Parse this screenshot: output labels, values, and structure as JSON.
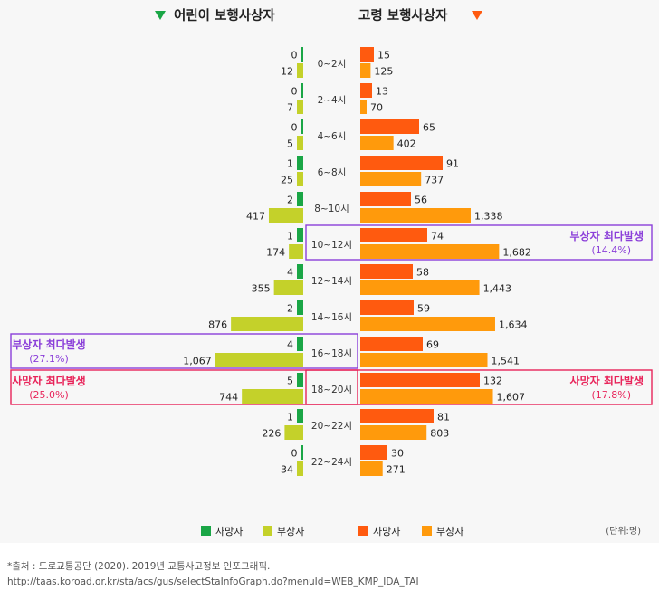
{
  "chart_data": {
    "type": "bar",
    "title_left": "어린이 보행사상자",
    "title_right": "고령 보행사상자",
    "categories": [
      "0~2시",
      "2~4시",
      "4~6시",
      "6~8시",
      "8~10시",
      "10~12시",
      "12~14시",
      "14~16시",
      "16~18시",
      "18~20시",
      "20~22시",
      "22~24시"
    ],
    "series": [
      {
        "name": "어린이 사망자",
        "color": "#1aa646",
        "values": [
          0,
          0,
          0,
          1,
          2,
          1,
          4,
          2,
          4,
          5,
          1,
          0
        ]
      },
      {
        "name": "어린이 부상자",
        "color": "#c4d12a",
        "values": [
          12,
          7,
          5,
          25,
          417,
          174,
          355,
          876,
          1067,
          744,
          226,
          34
        ]
      },
      {
        "name": "고령 사망자",
        "color": "#ff5a0f",
        "values": [
          15,
          13,
          65,
          91,
          56,
          74,
          58,
          59,
          69,
          132,
          81,
          30
        ]
      },
      {
        "name": "고령 부상자",
        "color": "#ff9a0c",
        "values": [
          125,
          70,
          402,
          737,
          1338,
          1682,
          1443,
          1634,
          1541,
          1607,
          803,
          271
        ]
      }
    ],
    "labels": {
      "child_deaths": [
        "0",
        "0",
        "0",
        "1",
        "2",
        "1",
        "4",
        "2",
        "4",
        "5",
        "1",
        "0"
      ],
      "child_injuries": [
        "12",
        "7",
        "5",
        "25",
        "417",
        "174",
        "355",
        "876",
        "1,067",
        "744",
        "226",
        "34"
      ],
      "elderly_deaths": [
        "15",
        "13",
        "65",
        "91",
        "56",
        "74",
        "58",
        "59",
        "69",
        "132",
        "81",
        "30"
      ],
      "elderly_injuries": [
        "125",
        "70",
        "402",
        "737",
        "1,338",
        "1,682",
        "1,443",
        "1,634",
        "1,541",
        "1,607",
        "803",
        "271"
      ]
    },
    "annotations": [
      {
        "side": "right",
        "category": "10~12시",
        "line1": "부상자 최다발생",
        "line2": "(14.4%)",
        "color": "#8b3fd9"
      },
      {
        "side": "left",
        "category": "16~18시",
        "line1": "부상자 최다발생",
        "line2": "(27.1%)",
        "color": "#8b3fd9"
      },
      {
        "side": "left",
        "category": "18~20시",
        "line1": "사망자 최다발생",
        "line2": "(25.0%)",
        "color": "#e8245a"
      },
      {
        "side": "right",
        "category": "18~20시",
        "line1": "사망자 최다발생",
        "line2": "(17.8%)",
        "color": "#e8245a"
      }
    ],
    "legend": [
      {
        "label": "사망자",
        "color": "#1aa646"
      },
      {
        "label": "부상자",
        "color": "#c4d12a"
      },
      {
        "label": "사망자",
        "color": "#ff5a0f"
      },
      {
        "label": "부상자",
        "color": "#ff9a0c"
      }
    ],
    "unit_label": "(단위:명)",
    "left_title_color": "#1aa646",
    "right_title_color": "#ff5a0f"
  },
  "source": {
    "line1": "*출처 : 도로교통공단 (2020). 2019년 교통사고정보 인포그래픽.",
    "line2": "http://taas.koroad.or.kr/sta/acs/gus/selectStaInfoGraph.do?menuId=WEB_KMP_IDA_TAI"
  }
}
